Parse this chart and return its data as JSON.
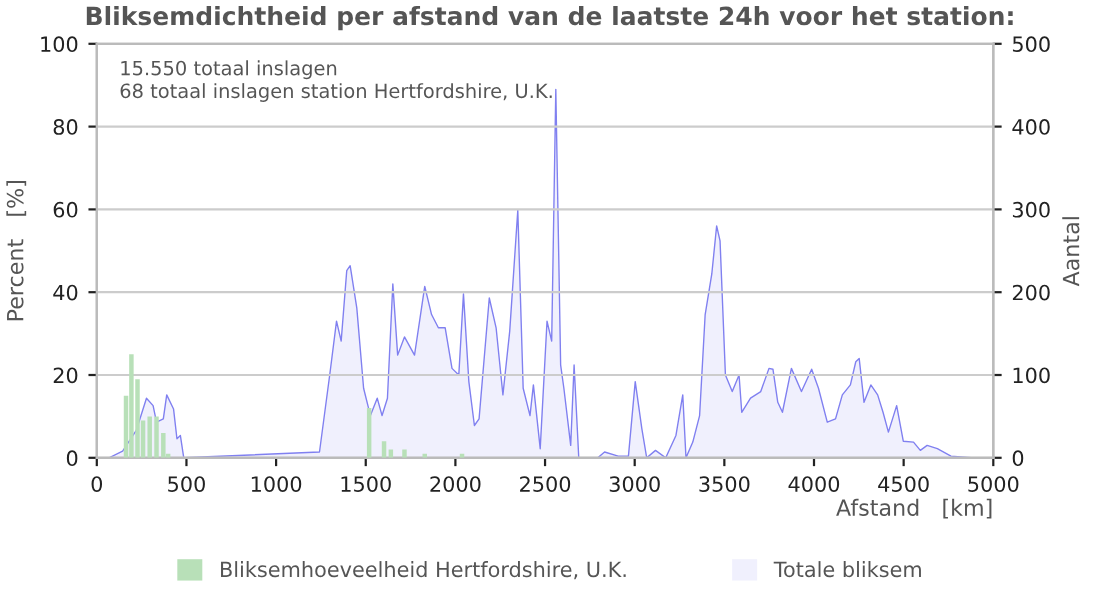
{
  "chart_data": {
    "type": "area",
    "title": "Bliksemdichtheid per afstand van de laatste 24h voor het station:",
    "xlabel": "Afstand   [km]",
    "ylabel": "Percent   [%]",
    "y2label": "Aantal",
    "annotations": [
      "15.550 totaal inslagen",
      "68 totaal inslagen station Hertfordshire, U.K."
    ],
    "xlim": [
      0,
      5000
    ],
    "xticks": [
      0,
      500,
      1000,
      1500,
      2000,
      2500,
      3000,
      3500,
      4000,
      4500,
      5000
    ],
    "ylim": [
      0,
      100
    ],
    "yticks": [
      0,
      20,
      40,
      60,
      80,
      100
    ],
    "y2lim": [
      0,
      500
    ],
    "y2ticks": [
      0,
      100,
      200,
      300,
      400,
      500
    ],
    "grid": "y",
    "legend": "bottom",
    "series": [
      {
        "name": "Bliksemhoeveelheid Hertfordshire, U.K.",
        "type": "bar",
        "color": "#b8e0b8",
        "x": [
          163,
          193,
          227,
          258,
          295,
          333,
          371,
          398,
          1519,
          1602,
          1640,
          1716,
          1829,
          2037
        ],
        "values": [
          15,
          25,
          19,
          9,
          10,
          10,
          6,
          1,
          12,
          4,
          2,
          2,
          1,
          1
        ]
      },
      {
        "name": "Totale bliksem",
        "axis": "y2",
        "color": "#8080f0",
        "x": [
          68,
          144,
          220,
          277,
          314,
          333,
          371,
          390,
          428,
          447,
          466,
          485,
          1242,
          1299,
          1337,
          1363,
          1394,
          1413,
          1450,
          1488,
          1526,
          1564,
          1591,
          1621,
          1651,
          1678,
          1716,
          1772,
          1829,
          1867,
          1905,
          1943,
          1981,
          2019,
          2045,
          2075,
          2106,
          2132,
          2189,
          2227,
          2265,
          2303,
          2348,
          2378,
          2416,
          2435,
          2473,
          2511,
          2537,
          2560,
          2587,
          2605,
          2643,
          2662,
          2688,
          2794,
          2832,
          2908,
          2965,
          3003,
          3040,
          3067,
          3116,
          3173,
          3230,
          3268,
          3286,
          3324,
          3362,
          3393,
          3430,
          3457,
          3476,
          3506,
          3544,
          3582,
          3597,
          3646,
          3703,
          3749,
          3771,
          3798,
          3824,
          3874,
          3930,
          3987,
          4025,
          4074,
          4120,
          4158,
          4203,
          4233,
          4252,
          4279,
          4317,
          4355,
          4385,
          4415,
          4461,
          4498,
          4555,
          4593,
          4631,
          4688,
          4764,
          4877,
          4972
        ],
        "values": [
          0,
          8,
          33,
          72,
          63,
          43,
          47,
          76,
          59,
          23,
          27,
          0,
          7,
          100,
          165,
          141,
          226,
          232,
          181,
          84,
          51,
          72,
          51,
          72,
          210,
          124,
          146,
          124,
          207,
          173,
          157,
          157,
          108,
          100,
          198,
          92,
          39,
          47,
          193,
          157,
          76,
          153,
          299,
          84,
          51,
          88,
          11,
          165,
          141,
          445,
          112,
          84,
          15,
          112,
          0,
          0,
          7,
          2,
          2,
          92,
          35,
          0,
          9,
          0,
          27,
          76,
          0,
          19,
          51,
          173,
          222,
          280,
          262,
          100,
          80,
          100,
          55,
          72,
          80,
          108,
          107,
          67,
          55,
          108,
          80,
          107,
          84,
          43,
          47,
          76,
          88,
          116,
          120,
          67,
          88,
          76,
          55,
          31,
          63,
          20,
          19,
          9,
          15,
          11,
          2,
          0,
          0
        ]
      }
    ]
  }
}
